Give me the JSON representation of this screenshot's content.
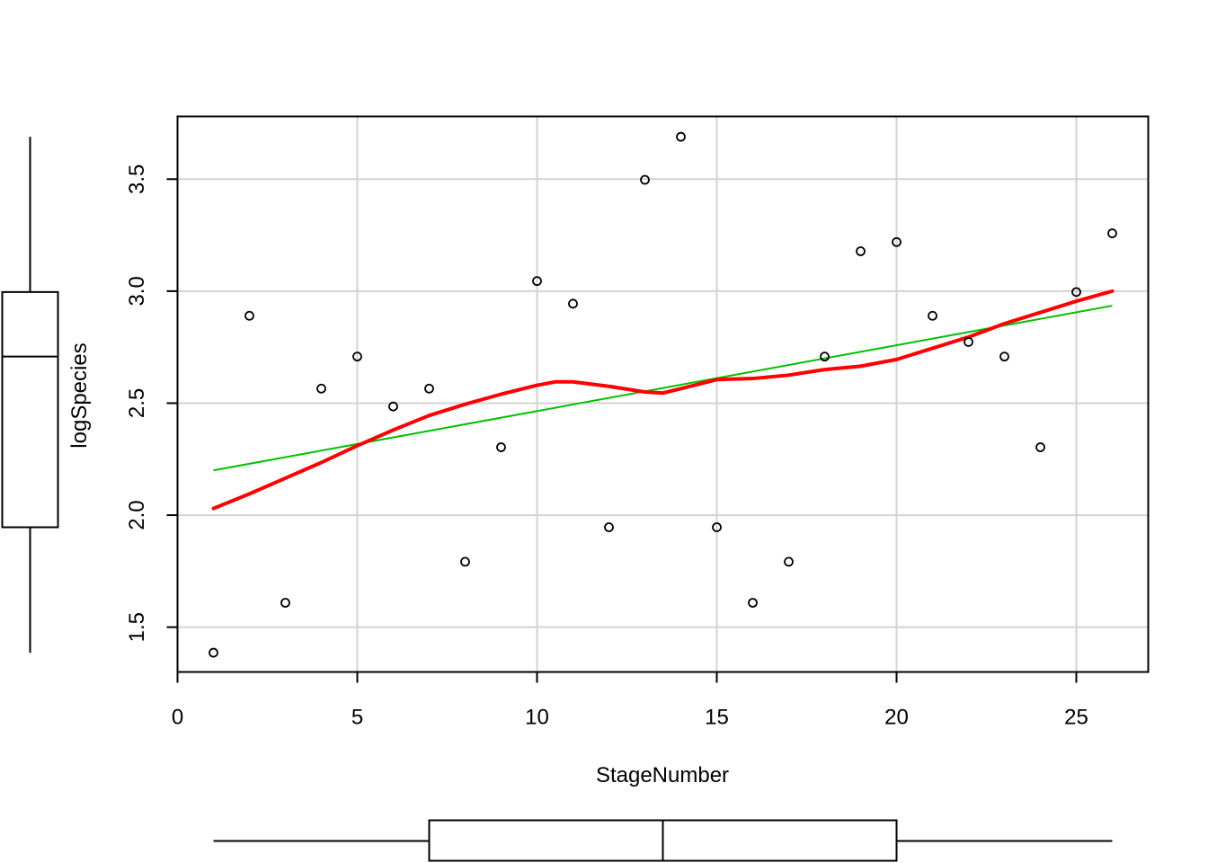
{
  "chart_data": {
    "type": "scatter",
    "title": "",
    "xlabel": "StageNumber",
    "ylabel": "logSpecies",
    "xlim": [
      0,
      27
    ],
    "ylim": [
      1.3,
      3.78
    ],
    "x_ticks": [
      0,
      5,
      10,
      15,
      20,
      25
    ],
    "x_tick_labels": [
      "0",
      "5",
      "10",
      "15",
      "20",
      "25"
    ],
    "y_ticks": [
      1.5,
      2.0,
      2.5,
      3.0,
      3.5
    ],
    "y_tick_labels": [
      "1.5",
      "2.0",
      "2.5",
      "3.0",
      "3.5"
    ],
    "grid": true,
    "legend": "none",
    "points": {
      "x": [
        1,
        2,
        3,
        4,
        5,
        6,
        7,
        8,
        9,
        10,
        11,
        12,
        13,
        14,
        15,
        16,
        17,
        18,
        19,
        20,
        21,
        22,
        23,
        24,
        25,
        26
      ],
      "y": [
        1.386,
        2.89,
        1.609,
        2.565,
        2.708,
        2.485,
        2.565,
        1.792,
        2.303,
        3.045,
        2.944,
        1.946,
        3.497,
        3.689,
        1.946,
        1.609,
        1.792,
        2.708,
        3.178,
        3.219,
        2.89,
        2.773,
        2.708,
        2.303,
        2.996,
        3.258
      ]
    },
    "linear_fit": {
      "name": "",
      "color": "#00c000",
      "x": [
        1,
        26
      ],
      "y": [
        2.2,
        2.935
      ]
    },
    "smooth_fit": {
      "name": "",
      "color": "#ff0000",
      "x": [
        1,
        2,
        3,
        4,
        5,
        6,
        7,
        8,
        9,
        10,
        10.5,
        11,
        12,
        13,
        13.5,
        14,
        15,
        16,
        17,
        18,
        19,
        20,
        21,
        22,
        23,
        24,
        25,
        26
      ],
      "y": [
        2.03,
        2.095,
        2.165,
        2.235,
        2.31,
        2.38,
        2.445,
        2.495,
        2.54,
        2.58,
        2.595,
        2.595,
        2.575,
        2.55,
        2.545,
        2.565,
        2.605,
        2.61,
        2.625,
        2.65,
        2.665,
        2.695,
        2.745,
        2.795,
        2.855,
        2.905,
        2.955,
        3.0
      ]
    },
    "boxplot_y": {
      "min": 1.386,
      "q1": 1.946,
      "median": 2.708,
      "q3": 2.996,
      "max": 3.689
    },
    "boxplot_x": {
      "min": 1,
      "q1": 7,
      "median": 13.5,
      "q3": 20,
      "max": 26
    },
    "colors": {
      "axis": "#000000",
      "grid": "#d3d3d3",
      "points": "#000000"
    }
  }
}
